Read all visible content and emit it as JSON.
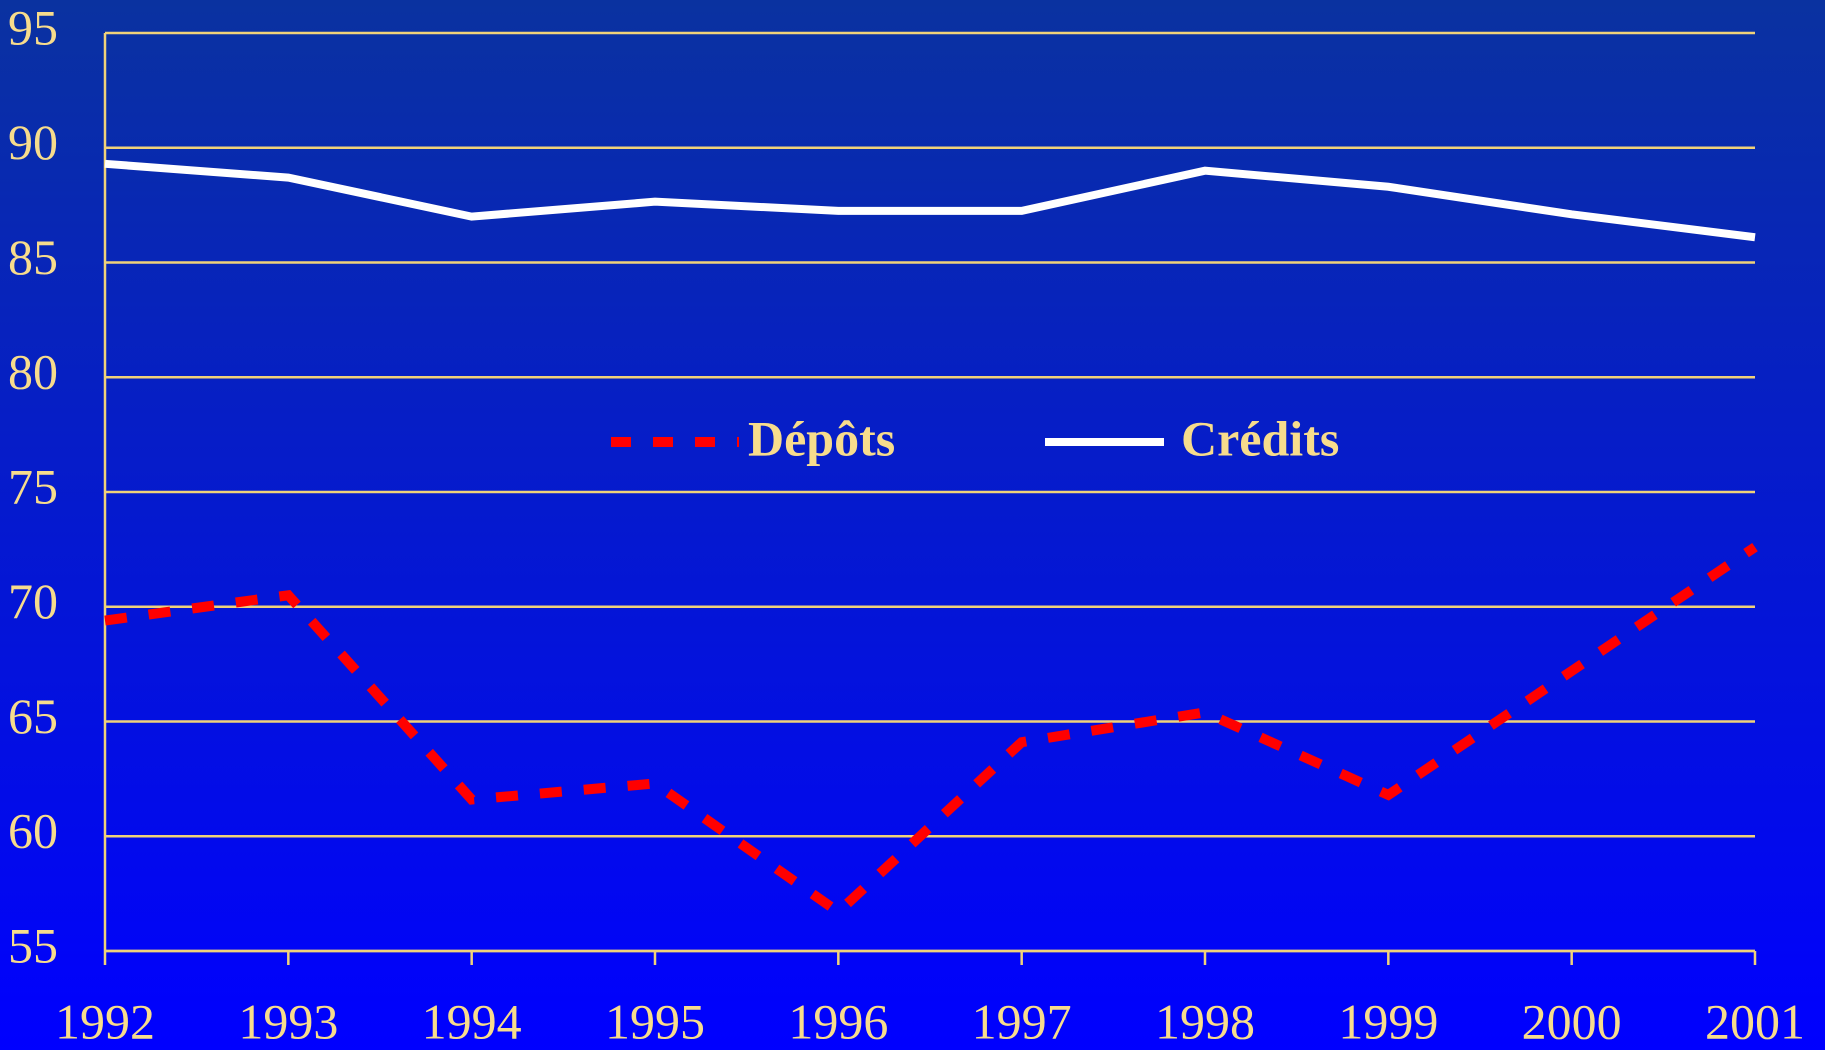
{
  "chart_data": {
    "type": "line",
    "x": [
      1992,
      1993,
      1994,
      1995,
      1996,
      1997,
      1998,
      1999,
      2000,
      2001
    ],
    "xlim": [
      1992,
      2001
    ],
    "xticks": [
      1992,
      1993,
      1994,
      1995,
      1996,
      1997,
      1998,
      1999,
      2000,
      2001
    ],
    "ylim": [
      55,
      95
    ],
    "yticks": [
      55,
      60,
      65,
      70,
      75,
      80,
      85,
      90,
      95
    ],
    "grid": true,
    "legend": "center",
    "series": [
      {
        "name": "Dépôts",
        "color": "#ff0000",
        "dash": true,
        "values": [
          69.4,
          70.5,
          61.6,
          62.3,
          56.7,
          64.1,
          65.4,
          61.8,
          67.2,
          72.6
        ]
      },
      {
        "name": "Crédits",
        "color": "#ffffff",
        "dash": false,
        "values": [
          89.3,
          88.7,
          87.0,
          87.65,
          87.25,
          87.25,
          89.0,
          88.3,
          87.1,
          86.1
        ]
      }
    ]
  }
}
